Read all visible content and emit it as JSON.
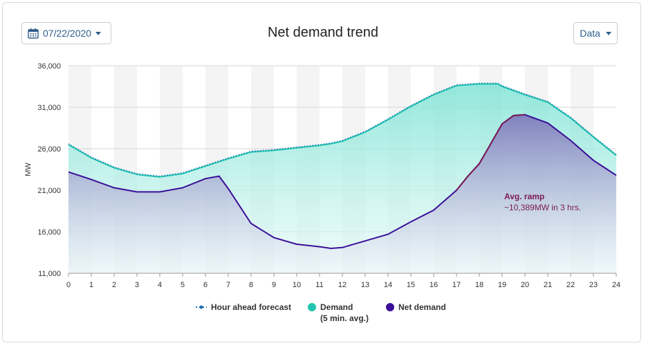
{
  "date_picker": {
    "label": "07/22/2020",
    "icon": "calendar-icon"
  },
  "data_menu": {
    "label": "Data"
  },
  "chart_data": {
    "type": "area",
    "title": "Net demand trend",
    "ylabel": "MW",
    "xlabel": "",
    "xlim": [
      0,
      24
    ],
    "ylim": [
      11000,
      36000
    ],
    "x_ticks": [
      "0",
      "1",
      "2",
      "3",
      "4",
      "5",
      "6",
      "7",
      "8",
      "9",
      "10",
      "11",
      "12",
      "13",
      "14",
      "15",
      "16",
      "17",
      "18",
      "19",
      "20",
      "21",
      "22",
      "23",
      "24"
    ],
    "y_ticks": [
      "11,000",
      "16,000",
      "21,000",
      "26,000",
      "31,000",
      "36,000"
    ],
    "grid": true,
    "legend_position": "bottom",
    "colors": {
      "demand": "#20c4b0",
      "net_demand": "#3b0f99",
      "forecast": "#1a6fb5",
      "ramp": "#7b1a52",
      "band": "#f4f4f4"
    },
    "series": [
      {
        "name": "Hour ahead forecast",
        "style": "dotted",
        "x": [
          0,
          1,
          2,
          3,
          4,
          5,
          6,
          7,
          8,
          9,
          10,
          11,
          11.5,
          12,
          13,
          14,
          15,
          16,
          17,
          18,
          18.8,
          19,
          20,
          21,
          22,
          23,
          24
        ],
        "values": [
          26600,
          25000,
          23800,
          23000,
          22700,
          23100,
          24000,
          24900,
          25700,
          25900,
          26200,
          26500,
          26700,
          27000,
          28100,
          29600,
          31200,
          32600,
          33700,
          33900,
          33900,
          33600,
          32600,
          31700,
          29800,
          27500,
          25300
        ]
      },
      {
        "name": "Demand",
        "name_line2": "(5 min. avg.)",
        "style": "area",
        "x": [
          0,
          1,
          2,
          3,
          4,
          5,
          6,
          7,
          8,
          9,
          10,
          11,
          11.5,
          12,
          13,
          14,
          15,
          16,
          17,
          18,
          18.8,
          19,
          20,
          21,
          22,
          23,
          24
        ],
        "values": [
          26500,
          24900,
          23700,
          22900,
          22600,
          23000,
          23900,
          24800,
          25600,
          25800,
          26100,
          26400,
          26600,
          26900,
          28000,
          29500,
          31100,
          32500,
          33600,
          33800,
          33800,
          33500,
          32500,
          31600,
          29700,
          27400,
          25200
        ]
      },
      {
        "name": "Net demand",
        "style": "area",
        "x": [
          0,
          1,
          2,
          3,
          4,
          5,
          6,
          6.6,
          7,
          8,
          9,
          10,
          11,
          11.5,
          12,
          13,
          14,
          15,
          16,
          17,
          17.5,
          18,
          19,
          19.5,
          20,
          21,
          22,
          23,
          24
        ],
        "values": [
          23200,
          22300,
          21300,
          20800,
          20800,
          21300,
          22400,
          22700,
          21200,
          17000,
          15300,
          14500,
          14200,
          14000,
          14100,
          14900,
          15700,
          17200,
          18600,
          21000,
          22700,
          24200,
          29000,
          30000,
          30100,
          29100,
          27000,
          24600,
          22800
        ]
      }
    ],
    "annotations": [
      {
        "label": "Avg. ramp",
        "text": "~10,389MW in 3 hrs.",
        "x": 19,
        "y": 20000
      }
    ]
  }
}
